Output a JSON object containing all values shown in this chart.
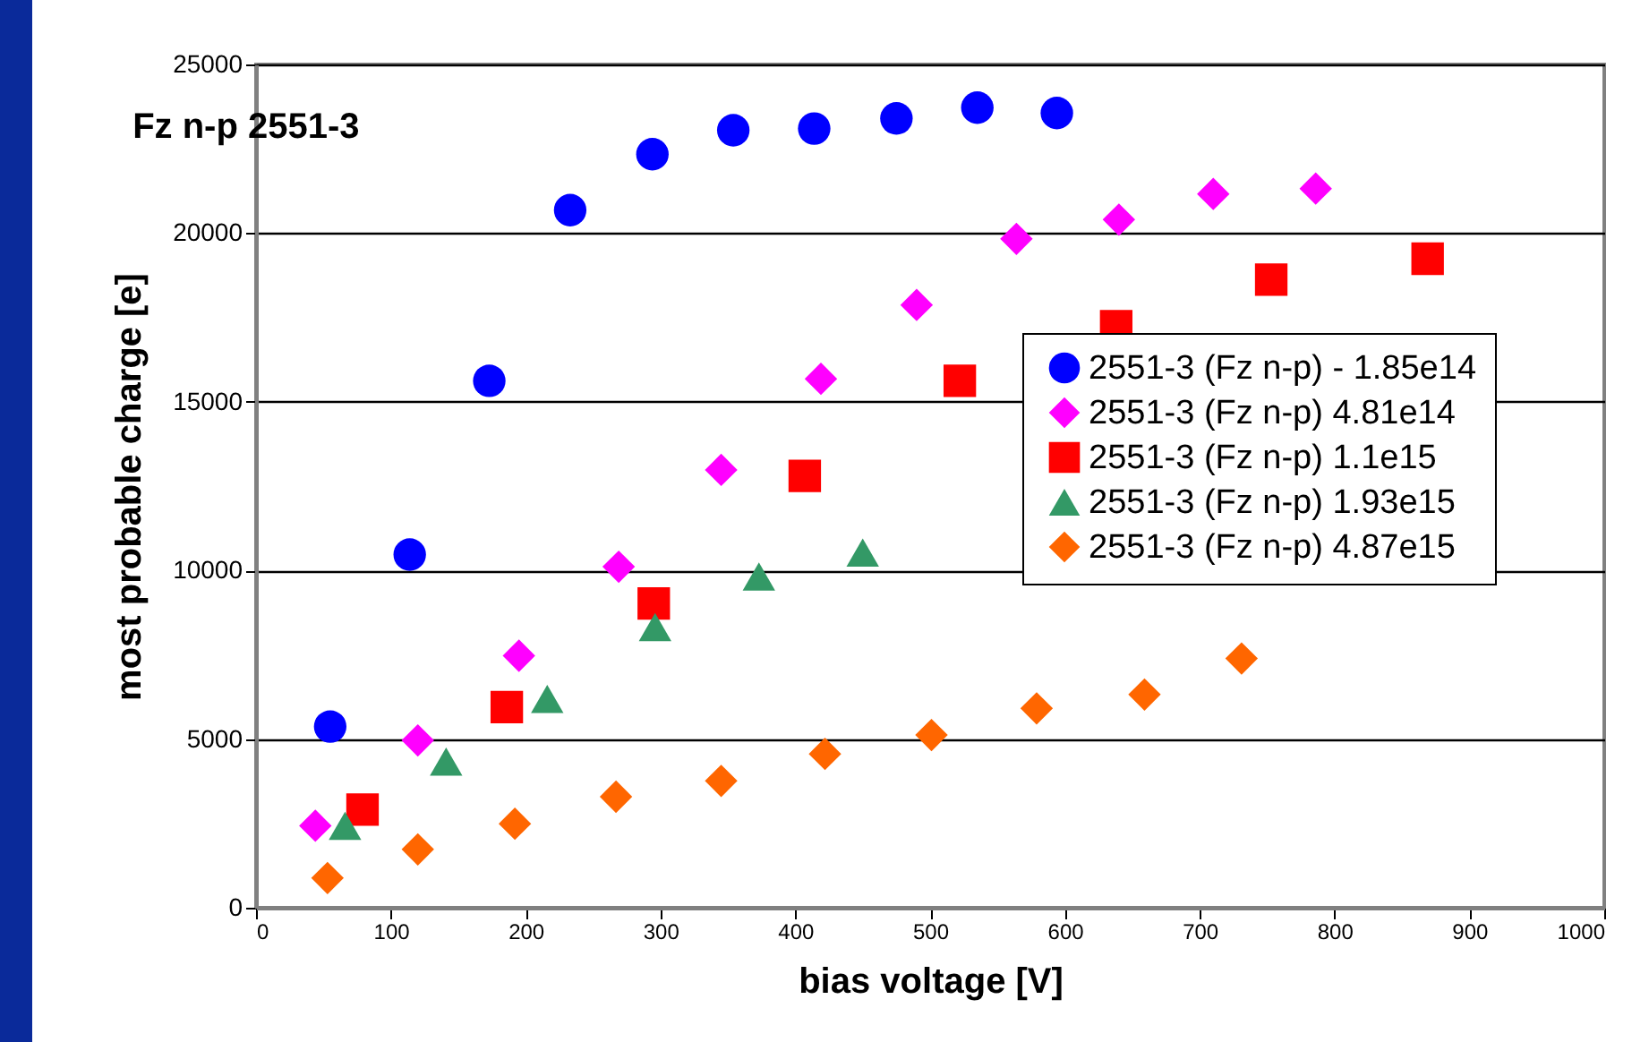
{
  "chart_data": {
    "type": "scatter",
    "title": "Fz n-p 2551-3",
    "xlabel": "bias voltage [V]",
    "ylabel": "most probable charge [e]",
    "xlim": [
      0,
      1000
    ],
    "xticks": [
      0,
      100,
      200,
      300,
      400,
      500,
      600,
      700,
      800,
      900,
      1000
    ],
    "ylim": [
      0,
      25000
    ],
    "yticks": [
      0,
      5000,
      10000,
      15000,
      20000,
      25000
    ],
    "grid": "y",
    "legend": "right",
    "series": [
      {
        "name": "2551-3 (Fz n-p) - 1.85e14",
        "color": "#0000ff",
        "marker": "circle",
        "x": [
          55,
          114,
          173,
          233,
          294,
          354,
          414,
          475,
          535,
          594
        ],
        "values": [
          5370,
          10470,
          15620,
          20680,
          22340,
          23050,
          23100,
          23400,
          23720,
          23560
        ]
      },
      {
        "name": "2551-3 (Fz n-p) 4.81e14",
        "color": "#ff00ff",
        "marker": "diamond",
        "x": [
          44,
          120,
          195,
          269,
          345,
          419,
          490,
          564,
          640,
          710,
          786
        ],
        "values": [
          2430,
          4960,
          7470,
          10110,
          12980,
          15680,
          17870,
          19830,
          20400,
          21160,
          21320
        ]
      },
      {
        "name": "2551-3 (Fz n-p) 1.1e15",
        "color": "#ff0000",
        "marker": "square",
        "x": [
          79,
          186,
          295,
          407,
          522,
          638,
          753,
          869
        ],
        "values": [
          2910,
          5950,
          9020,
          12800,
          15620,
          17240,
          18620,
          19240
        ]
      },
      {
        "name": "2551-3 (Fz n-p) 1.93e15",
        "color": "#339966",
        "marker": "triangle",
        "x": [
          66,
          141,
          216,
          296,
          373,
          450
        ],
        "values": [
          2430,
          4330,
          6190,
          8320,
          9820,
          10530
        ]
      },
      {
        "name": "2551-3 (Fz n-p) 4.87e15",
        "color": "#ff6600",
        "marker": "diamond",
        "x": [
          53,
          120,
          192,
          267,
          345,
          422,
          501,
          579,
          659,
          731
        ],
        "values": [
          880,
          1730,
          2490,
          3290,
          3760,
          4560,
          5120,
          5910,
          6320,
          7390
        ]
      }
    ]
  }
}
